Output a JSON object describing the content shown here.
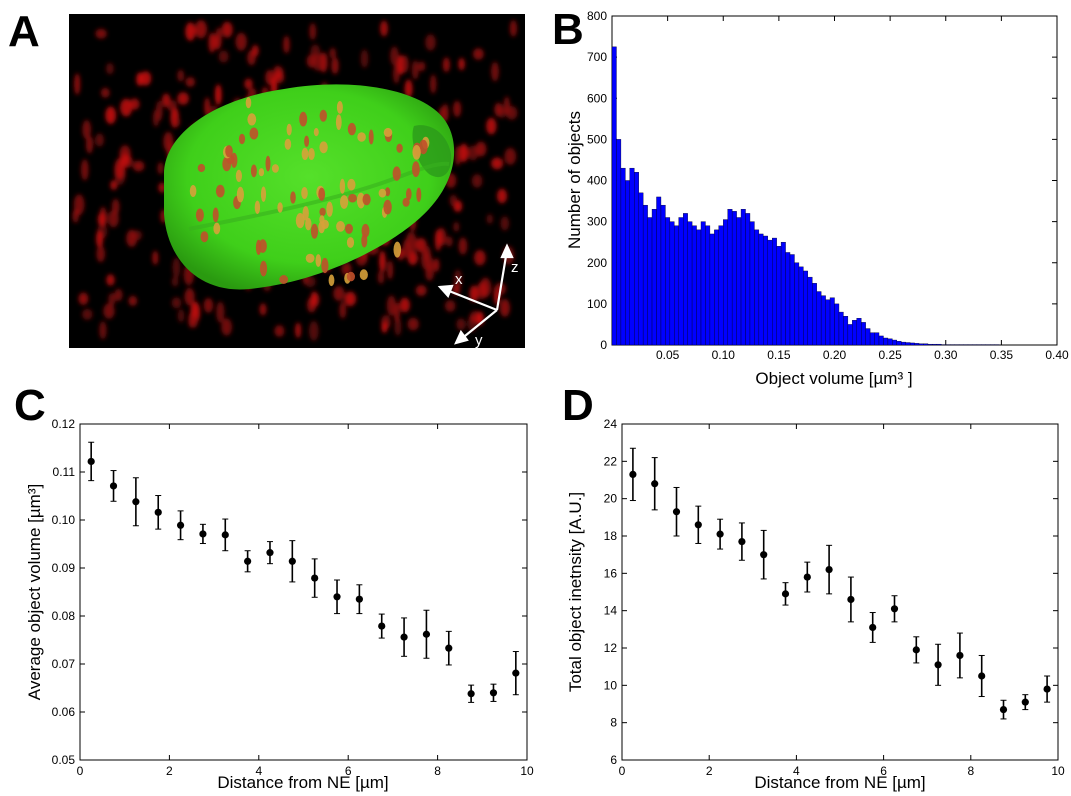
{
  "panels": {
    "a": {
      "letter": "A",
      "axes": {
        "x": "x",
        "y": "y",
        "z": "z"
      }
    },
    "b": {
      "letter": "B"
    },
    "c": {
      "letter": "C"
    },
    "d": {
      "letter": "D"
    }
  },
  "chart_data": [
    {
      "id": "B",
      "type": "bar",
      "title": "",
      "xlabel": "Object volume",
      "xlabel_unit": "[µm³ ]",
      "ylabel": "Number of objects",
      "xlim": [
        0.0,
        0.4
      ],
      "ylim": [
        0,
        800
      ],
      "xticks": [
        "0.05",
        "0.10",
        "0.15",
        "0.20",
        "0.25",
        "0.30",
        "0.35",
        "0.40"
      ],
      "yticks": [
        "0",
        "100",
        "200",
        "300",
        "400",
        "500",
        "600",
        "700",
        "800"
      ],
      "bin_width": 0.004,
      "bin_start": 0.0,
      "color": "#0000ff",
      "values": [
        725,
        500,
        430,
        400,
        430,
        420,
        370,
        340,
        310,
        330,
        360,
        340,
        310,
        300,
        290,
        310,
        320,
        300,
        290,
        280,
        300,
        290,
        270,
        280,
        290,
        305,
        330,
        325,
        310,
        330,
        320,
        300,
        280,
        270,
        265,
        255,
        260,
        240,
        250,
        225,
        220,
        200,
        190,
        180,
        165,
        150,
        130,
        120,
        110,
        115,
        100,
        80,
        70,
        50,
        60,
        65,
        55,
        40,
        30,
        30,
        22,
        17,
        15,
        12,
        9,
        7,
        6,
        5,
        4,
        3,
        3,
        2,
        2,
        2,
        1,
        1,
        1,
        1,
        1,
        1,
        1,
        1,
        1,
        1,
        1,
        1,
        1,
        0,
        0,
        0,
        0,
        0,
        0,
        0,
        0,
        0,
        0,
        0,
        0,
        0
      ]
    },
    {
      "id": "C",
      "type": "scatter",
      "title": "",
      "xlabel": "Distance from NE [µm]",
      "ylabel": "Average object volume [µm³]",
      "xlim": [
        0,
        10
      ],
      "ylim": [
        0.05,
        0.12
      ],
      "xticks": [
        "0",
        "2",
        "4",
        "6",
        "8",
        "10"
      ],
      "yticks": [
        "0.05",
        "0.06",
        "0.07",
        "0.08",
        "0.09",
        "0.10",
        "0.11",
        "0.12"
      ],
      "error_bars": true,
      "color": "#000000",
      "x": [
        0.25,
        0.75,
        1.25,
        1.75,
        2.25,
        2.75,
        3.25,
        3.75,
        4.25,
        4.75,
        5.25,
        5.75,
        6.25,
        6.75,
        7.25,
        7.75,
        8.25,
        8.75,
        9.25,
        9.75
      ],
      "y": [
        0.1122,
        0.1071,
        0.1038,
        0.1016,
        0.0989,
        0.0971,
        0.0969,
        0.0914,
        0.0932,
        0.0914,
        0.0879,
        0.084,
        0.0835,
        0.0779,
        0.0756,
        0.0762,
        0.0733,
        0.0638,
        0.064,
        0.0681
      ],
      "err": [
        0.004,
        0.0032,
        0.005,
        0.0035,
        0.003,
        0.002,
        0.0033,
        0.0022,
        0.0023,
        0.0043,
        0.004,
        0.0035,
        0.003,
        0.0025,
        0.004,
        0.005,
        0.0035,
        0.0018,
        0.0018,
        0.0045
      ]
    },
    {
      "id": "D",
      "type": "scatter",
      "title": "",
      "xlabel": "Distance from NE [µm]",
      "ylabel": "Total object inetnsity [A.U.]",
      "xlim": [
        0,
        10
      ],
      "ylim": [
        6,
        24
      ],
      "xticks": [
        "0",
        "2",
        "4",
        "6",
        "8",
        "10"
      ],
      "yticks": [
        "6",
        "8",
        "10",
        "12",
        "14",
        "16",
        "18",
        "20",
        "22",
        "24"
      ],
      "error_bars": true,
      "color": "#000000",
      "x": [
        0.25,
        0.75,
        1.25,
        1.75,
        2.25,
        2.75,
        3.25,
        3.75,
        4.25,
        4.75,
        5.25,
        5.75,
        6.25,
        6.75,
        7.25,
        7.75,
        8.25,
        8.75,
        9.25,
        9.75
      ],
      "y": [
        21.3,
        20.8,
        19.3,
        18.6,
        18.1,
        17.7,
        17.0,
        14.9,
        15.8,
        16.2,
        14.6,
        13.1,
        14.1,
        11.9,
        11.1,
        11.6,
        10.5,
        8.7,
        9.1,
        9.8
      ],
      "err": [
        1.4,
        1.4,
        1.3,
        1.0,
        0.8,
        1.0,
        1.3,
        0.6,
        0.8,
        1.3,
        1.2,
        0.8,
        0.7,
        0.7,
        1.1,
        1.2,
        1.1,
        0.5,
        0.4,
        0.7
      ]
    }
  ]
}
